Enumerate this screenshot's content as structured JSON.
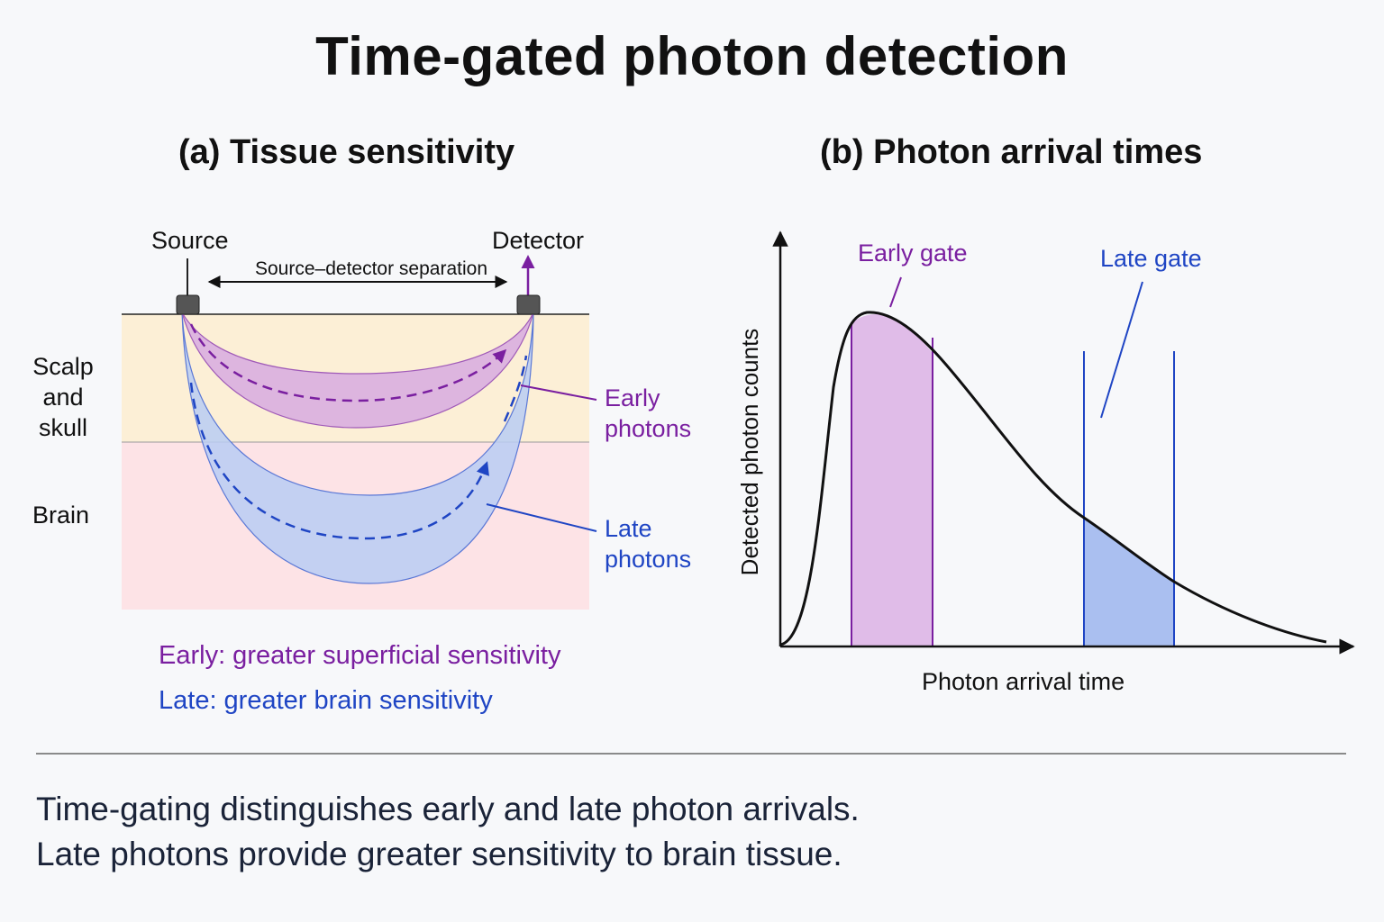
{
  "title": "Time-gated photon detection",
  "panel_a": {
    "title": "(a) Tissue sensitivity",
    "source_label": "Source",
    "detector_label": "Detector",
    "separation_label": "Source–detector separation",
    "layer_top": [
      "Scalp",
      "and skull"
    ],
    "layer_bottom": "Brain",
    "early_label": [
      "Early",
      "photons"
    ],
    "late_label": [
      "Late",
      "photons"
    ],
    "note_early": "Early:  greater superficial sensitivity",
    "note_late": "Late:  greater brain sensitivity"
  },
  "panel_b": {
    "title": "(b) Photon arrival times",
    "xlabel": "Photon arrival time",
    "ylabel": "Detected photon counts",
    "early_gate_label": "Early gate",
    "late_gate_label": "Late gate"
  },
  "caption": [
    "Time-gating distinguishes early and late photon arrivals.",
    "Late photons provide greater sensitivity to brain tissue."
  ],
  "colors": {
    "scalp": "#fcefd6",
    "brain": "#fde3e6",
    "early": "#7a1fa0",
    "early_fill": "#d9aee0",
    "late": "#1f45c4",
    "late_fill": "#b9cdf3",
    "optode": "#555555"
  }
}
